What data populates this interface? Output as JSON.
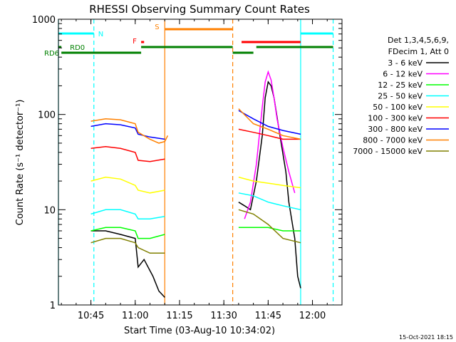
{
  "chart_data": {
    "type": "line",
    "title": "RHESSI Observing Summary Count Rates",
    "xlabel": "Start Time (03-Aug-10 10:34:02)",
    "ylabel": "Count Rate (s⁻¹ detector⁻¹)",
    "y_scale": "log",
    "ylim": [
      1,
      1000
    ],
    "xlim": [
      "10:34",
      "12:10"
    ],
    "x_ticks": [
      "10:45",
      "11:00",
      "11:15",
      "11:30",
      "11:45",
      "12:00"
    ],
    "y_ticks": [
      "1",
      "10",
      "100",
      "1000"
    ],
    "legend_title": [
      "Det 1,3,4,5,6,9,",
      "FDecim 1, Att 0"
    ],
    "legend_position": "right",
    "timestamp": "15-Oct-2021 18:15",
    "series": [
      {
        "name": "3 - 6 keV",
        "color": "#000000",
        "segments": [
          {
            "t": [
              "10:45",
              "10:50",
              "10:55",
              "11:00",
              "11:01",
              "11:03",
              "11:06",
              "11:08",
              "11:10"
            ],
            "v": [
              6,
              6,
              5.5,
              5,
              2.5,
              3,
              2,
              1.4,
              1.2
            ]
          },
          {
            "t": [
              "11:35",
              "11:37",
              "11:39",
              "11:41",
              "11:43",
              "11:44",
              "11:45",
              "11:46",
              "11:47",
              "11:49",
              "11:51",
              "11:52",
              "11:54",
              "11:55",
              "11:56"
            ],
            "v": [
              12,
              11,
              10,
              20,
              60,
              150,
              220,
              200,
              150,
              60,
              25,
              12,
              5,
              2,
              1.5
            ]
          }
        ]
      },
      {
        "name": "6 - 12 keV",
        "color": "#ff00ff",
        "segments": [
          {
            "t": [
              "11:37",
              "11:39",
              "11:41",
              "11:43",
              "11:44",
              "11:45",
              "11:46",
              "11:47",
              "11:48",
              "11:50",
              "11:52",
              "11:54"
            ],
            "v": [
              8,
              12,
              30,
              120,
              220,
              280,
              230,
              150,
              90,
              45,
              25,
              15
            ]
          }
        ]
      },
      {
        "name": "12 - 25 keV",
        "color": "#00ff00",
        "segments": [
          {
            "t": [
              "10:45",
              "10:50",
              "10:55",
              "11:00",
              "11:01",
              "11:05",
              "11:10"
            ],
            "v": [
              6,
              6.5,
              6.5,
              6,
              5,
              5,
              5.5
            ]
          },
          {
            "t": [
              "11:35",
              "11:40",
              "11:45",
              "11:50",
              "11:56"
            ],
            "v": [
              6.5,
              6.5,
              6.5,
              6,
              6
            ]
          }
        ]
      },
      {
        "name": "25 - 50 keV",
        "color": "#00ffff",
        "segments": [
          {
            "t": [
              "10:45",
              "10:50",
              "10:55",
              "11:00",
              "11:01",
              "11:05",
              "11:10"
            ],
            "v": [
              9,
              10,
              10,
              9,
              8,
              8,
              8.5
            ]
          },
          {
            "t": [
              "11:35",
              "11:40",
              "11:45",
              "11:50",
              "11:56"
            ],
            "v": [
              15,
              14,
              12,
              11,
              10
            ]
          }
        ]
      },
      {
        "name": "50 - 100 keV",
        "color": "#ffff00",
        "segments": [
          {
            "t": [
              "10:45",
              "10:50",
              "10:55",
              "11:00",
              "11:01",
              "11:05",
              "11:10"
            ],
            "v": [
              20,
              22,
              21,
              18,
              16,
              15,
              16
            ]
          },
          {
            "t": [
              "11:35",
              "11:40",
              "11:45",
              "11:50",
              "11:56"
            ],
            "v": [
              22,
              20,
              19,
              18,
              17
            ]
          }
        ]
      },
      {
        "name": "100 - 300 keV",
        "color": "#ff0000",
        "segments": [
          {
            "t": [
              "10:45",
              "10:50",
              "10:55",
              "11:00",
              "11:01",
              "11:05",
              "11:10"
            ],
            "v": [
              44,
              46,
              44,
              40,
              33,
              32,
              34
            ]
          },
          {
            "t": [
              "11:35",
              "11:40",
              "11:45",
              "11:50",
              "11:56"
            ],
            "v": [
              70,
              65,
              60,
              55,
              55
            ]
          }
        ]
      },
      {
        "name": "300 - 800 keV",
        "color": "#0000ff",
        "segments": [
          {
            "t": [
              "10:45",
              "10:50",
              "10:55",
              "11:00",
              "11:01",
              "11:05",
              "11:10"
            ],
            "v": [
              75,
              80,
              78,
              72,
              62,
              58,
              55
            ]
          },
          {
            "t": [
              "11:35",
              "11:40",
              "11:45",
              "11:50",
              "11:56"
            ],
            "v": [
              110,
              90,
              75,
              68,
              62
            ]
          }
        ]
      },
      {
        "name": "800 - 7000 keV",
        "color": "#ff8000",
        "segments": [
          {
            "t": [
              "10:45",
              "10:50",
              "10:55",
              "11:00",
              "11:01",
              "11:05",
              "11:08",
              "11:10",
              "11:11"
            ],
            "v": [
              85,
              90,
              88,
              80,
              65,
              55,
              50,
              52,
              60
            ]
          },
          {
            "t": [
              "11:35",
              "11:40",
              "11:45",
              "11:50",
              "11:56"
            ],
            "v": [
              115,
              80,
              70,
              60,
              55
            ]
          }
        ]
      },
      {
        "name": "7000 - 15000 keV",
        "color": "#808000",
        "segments": [
          {
            "t": [
              "10:45",
              "10:50",
              "10:55",
              "11:00",
              "11:01",
              "11:05",
              "11:10"
            ],
            "v": [
              4.5,
              5,
              5,
              4.5,
              4,
              3.5,
              3.5
            ]
          },
          {
            "t": [
              "11:35",
              "11:40",
              "11:45",
              "11:50",
              "11:56"
            ],
            "v": [
              10,
              9,
              7,
              5,
              4.5
            ]
          }
        ]
      }
    ],
    "flag_bars": [
      {
        "label": "N",
        "color": "#00ffff",
        "segments": [
          [
            "10:34",
            "10:46"
          ],
          [
            "11:56",
            "12:07"
          ]
        ]
      },
      {
        "label": "F",
        "color": "#ff0000",
        "segments": [
          [
            "11:02",
            "11:03"
          ],
          [
            "11:36",
            "11:56"
          ]
        ]
      },
      {
        "label": "S",
        "color": "#ff8000",
        "segments": [
          [
            "11:10",
            "11:33"
          ]
        ]
      },
      {
        "label": "RD0",
        "color": "#008000",
        "segments": [
          [
            "10:34",
            "10:35"
          ],
          [
            "11:02",
            "11:33"
          ],
          [
            "11:41",
            "12:07"
          ]
        ]
      },
      {
        "label": "RD6",
        "color": "#008000",
        "segments": [
          [
            "10:35",
            "11:02"
          ],
          [
            "11:33",
            "11:40"
          ]
        ]
      }
    ],
    "vertical_markers": [
      {
        "t": "10:34",
        "color": "#00ffff",
        "style": "solid"
      },
      {
        "t": "10:46",
        "color": "#00ffff",
        "style": "dashed"
      },
      {
        "t": "11:10",
        "color": "#ff8000",
        "style": "solid"
      },
      {
        "t": "11:33",
        "color": "#ff8000",
        "style": "dashed"
      },
      {
        "t": "11:56",
        "color": "#00ffff",
        "style": "solid"
      },
      {
        "t": "12:07",
        "color": "#00ffff",
        "style": "dashed"
      }
    ]
  }
}
